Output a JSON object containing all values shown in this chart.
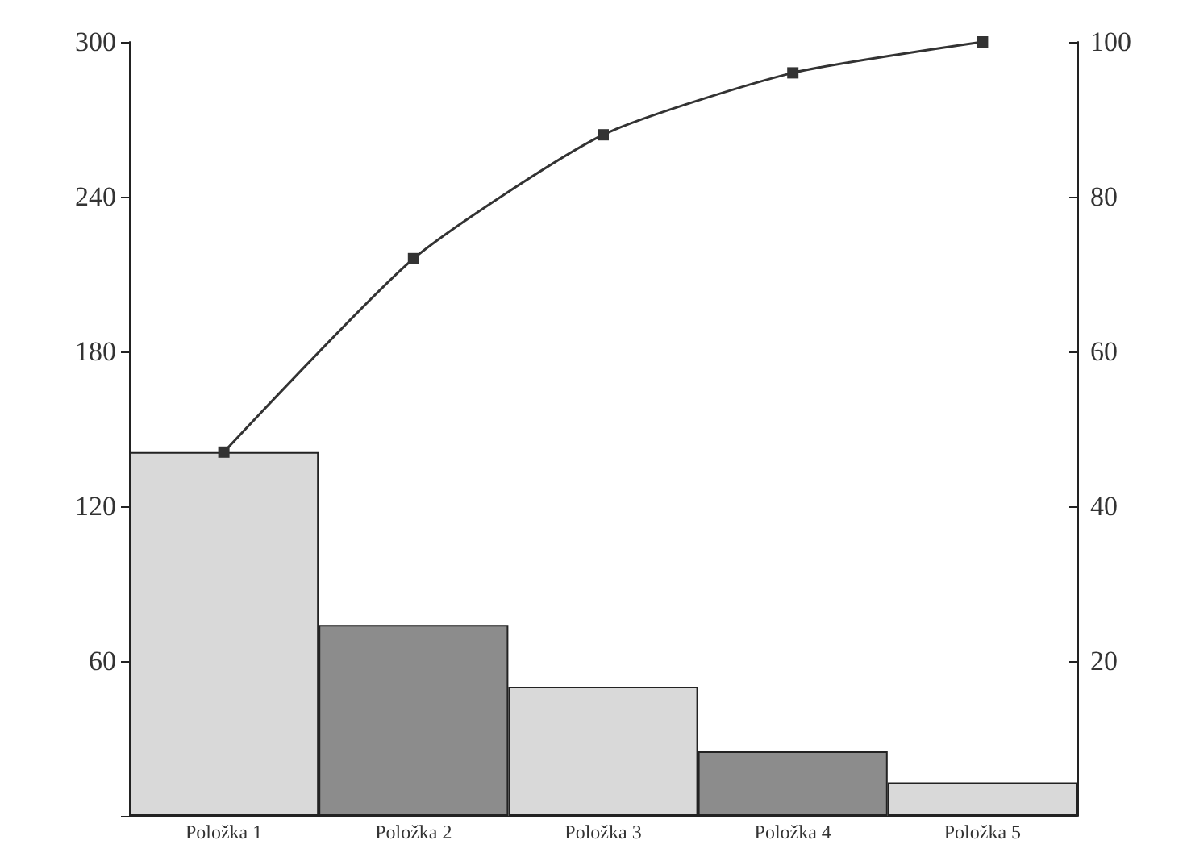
{
  "chart_data": {
    "type": "bar",
    "categories": [
      "Položka 1",
      "Položka 2",
      "Položka 3",
      "Položka 4",
      "Položka 5"
    ],
    "series": [
      {
        "color": "#d9d9d9",
        "colors": [
          "#d9d9d9",
          "#8c8c8c",
          "#d9d9d9",
          "#8c8c8c",
          "#d9d9d9"
        ],
        "values": [
          141,
          74,
          50,
          25,
          13
        ]
      },
      {
        "type": "line",
        "axis": "y2",
        "color": "#333333",
        "values": [
          47,
          72,
          88,
          96,
          100
        ]
      }
    ],
    "ylim": [
      0,
      300
    ],
    "yticks": [
      {
        "value": 0,
        "label": null
      },
      60,
      120,
      180,
      240,
      300
    ],
    "y2lim": [
      0,
      100
    ],
    "y2ticks": [
      {
        "value": 0,
        "label": null
      },
      20,
      40,
      60,
      80,
      100
    ],
    "grid": false,
    "marker": "square"
  }
}
